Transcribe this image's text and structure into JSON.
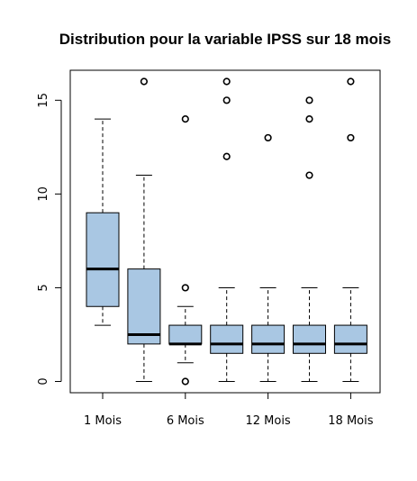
{
  "chart_data": {
    "type": "boxplot",
    "title": "Distribution pour la variable IPSS sur 18 mois",
    "xlabel": "",
    "ylabel": "",
    "ylim": [
      -0.6,
      16.6
    ],
    "yticks": [
      0,
      5,
      10,
      15
    ],
    "box_color": "#a9c7e3",
    "grid": false,
    "categories": [
      "1 Mois",
      "",
      "6 Mois",
      "",
      "12  Mois",
      "",
      "18 Mois"
    ],
    "xtick_labels": [
      "1 Mois",
      "6 Mois",
      "12  Mois",
      "18 Mois"
    ],
    "boxes": [
      {
        "whisker_low": 3,
        "q1": 4,
        "median": 6,
        "q3": 9,
        "whisker_high": 14,
        "outliers": []
      },
      {
        "whisker_low": 0,
        "q1": 2,
        "median": 2.5,
        "q3": 6,
        "whisker_high": 11,
        "outliers": [
          16
        ]
      },
      {
        "whisker_low": 1,
        "q1": 2,
        "median": 2,
        "q3": 3,
        "whisker_high": 4,
        "outliers": [
          0,
          5,
          14
        ]
      },
      {
        "whisker_low": 0,
        "q1": 1.5,
        "median": 2,
        "q3": 3,
        "whisker_high": 5,
        "outliers": [
          12,
          15,
          16
        ]
      },
      {
        "whisker_low": 0,
        "q1": 1.5,
        "median": 2,
        "q3": 3,
        "whisker_high": 5,
        "outliers": [
          13
        ]
      },
      {
        "whisker_low": 0,
        "q1": 1.5,
        "median": 2,
        "q3": 3,
        "whisker_high": 5,
        "outliers": [
          11,
          14,
          15
        ]
      },
      {
        "whisker_low": 0,
        "q1": 1.5,
        "median": 2,
        "q3": 3,
        "whisker_high": 5,
        "outliers": [
          13,
          16
        ]
      }
    ]
  }
}
